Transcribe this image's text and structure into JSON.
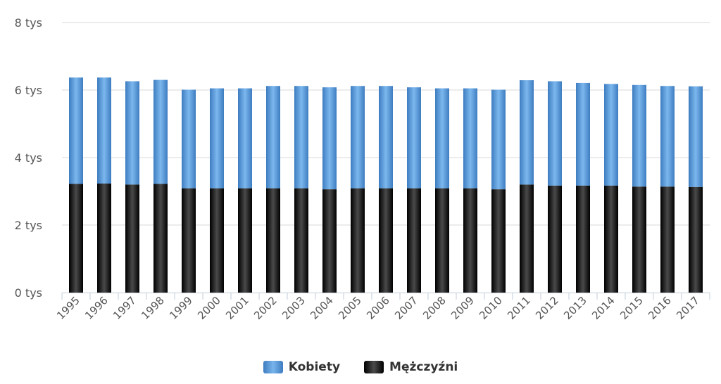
{
  "chart_data": {
    "type": "bar",
    "stacked": true,
    "categories": [
      "1995",
      "1996",
      "1997",
      "1998",
      "1999",
      "2000",
      "2001",
      "2002",
      "2003",
      "2004",
      "2005",
      "2006",
      "2007",
      "2008",
      "2009",
      "2010",
      "2011",
      "2012",
      "2013",
      "2014",
      "2015",
      "2016",
      "2017"
    ],
    "series": [
      {
        "name": "Mężczyźni",
        "color": "#111111",
        "values": [
          3220,
          3230,
          3200,
          3220,
          3090,
          3090,
          3090,
          3090,
          3090,
          3060,
          3090,
          3090,
          3090,
          3090,
          3090,
          3060,
          3200,
          3170,
          3170,
          3170,
          3140,
          3140,
          3130
        ]
      },
      {
        "name": "Kobiety",
        "color": "#4d8fd6",
        "values": [
          3150,
          3140,
          3060,
          3080,
          2920,
          2960,
          2960,
          3030,
          3030,
          3020,
          3030,
          3030,
          2990,
          2960,
          2960,
          2950,
          3090,
          3090,
          3040,
          3010,
          3010,
          2980,
          2980
        ]
      }
    ],
    "ylim": [
      0,
      8000
    ],
    "yticks": [
      0,
      2000,
      4000,
      6000,
      8000
    ],
    "ytick_labels": [
      "0 tys",
      "2 tys",
      "4 tys",
      "6 tys",
      "8 tys"
    ],
    "grid": true,
    "legend_position": "bottom-center"
  },
  "legend": {
    "kobiety_label": "Kobiety",
    "mezczyzni_label": "Mężczyźni"
  }
}
